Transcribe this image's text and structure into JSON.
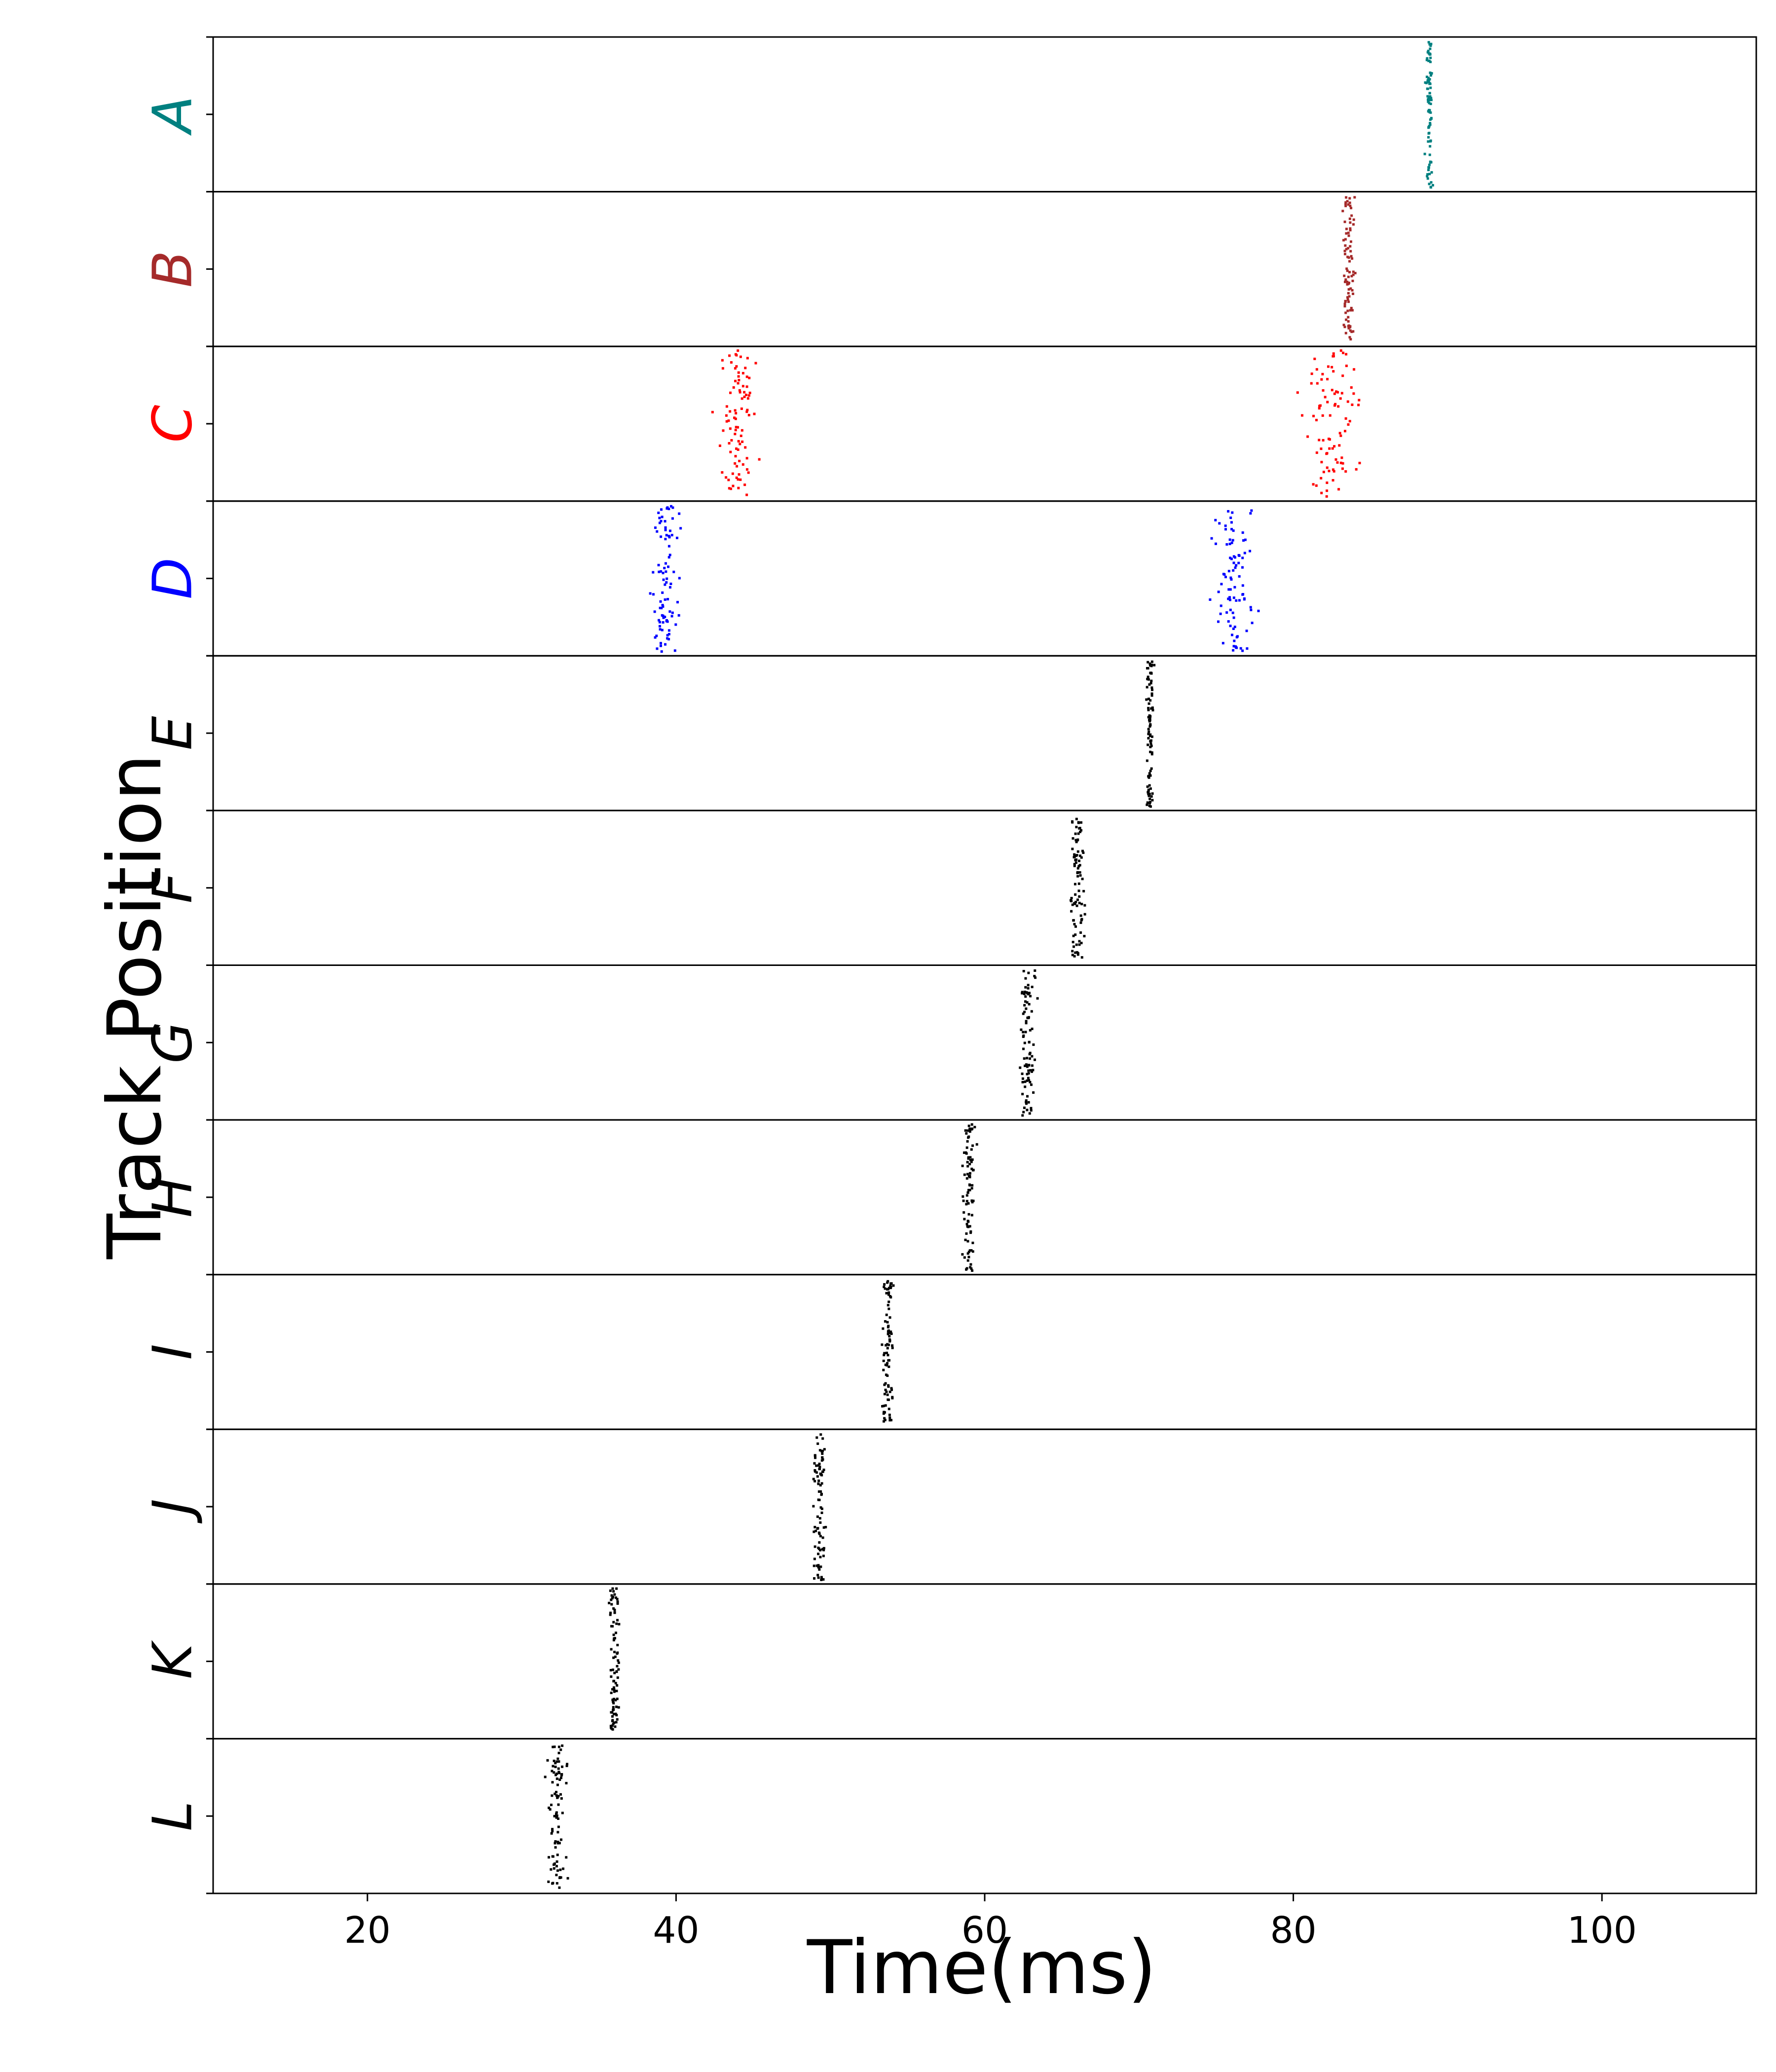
{
  "chart_data": {
    "type": "scatter",
    "xlabel": "Time(ms)",
    "ylabel": "Track Position",
    "xlim": [
      10,
      110
    ],
    "x_ticks": [
      20,
      40,
      60,
      80,
      100
    ],
    "grid": false,
    "rows": [
      {
        "label": "A",
        "color": "#008080",
        "clusters": [
          {
            "center": 88.8,
            "spread": 0.3
          }
        ]
      },
      {
        "label": "B",
        "color": "#a52a2a",
        "clusters": [
          {
            "center": 83.6,
            "spread": 0.5
          }
        ]
      },
      {
        "label": "C",
        "color": "#ff0000",
        "clusters": [
          {
            "center": 44.0,
            "spread": 1.6
          },
          {
            "center": 82.5,
            "spread": 2.4
          }
        ]
      },
      {
        "label": "D",
        "color": "#0000ff",
        "clusters": [
          {
            "center": 39.3,
            "spread": 1.2
          },
          {
            "center": 76.0,
            "spread": 2.0
          }
        ]
      },
      {
        "label": "E",
        "color": "#000000",
        "clusters": [
          {
            "center": 70.7,
            "spread": 0.3
          }
        ]
      },
      {
        "label": "F",
        "color": "#000000",
        "clusters": [
          {
            "center": 66.0,
            "spread": 0.6
          }
        ]
      },
      {
        "label": "G",
        "color": "#000000",
        "clusters": [
          {
            "center": 62.8,
            "spread": 0.6
          }
        ]
      },
      {
        "label": "H",
        "color": "#000000",
        "clusters": [
          {
            "center": 59.0,
            "spread": 0.5
          }
        ]
      },
      {
        "label": "I",
        "color": "#000000",
        "clusters": [
          {
            "center": 53.7,
            "spread": 0.5
          }
        ]
      },
      {
        "label": "J",
        "color": "#000000",
        "clusters": [
          {
            "center": 49.3,
            "spread": 0.6
          }
        ]
      },
      {
        "label": "K",
        "color": "#000000",
        "clusters": [
          {
            "center": 36.0,
            "spread": 0.4
          }
        ]
      },
      {
        "label": "L",
        "color": "#000000",
        "clusters": [
          {
            "center": 32.3,
            "spread": 0.8
          }
        ]
      }
    ]
  }
}
